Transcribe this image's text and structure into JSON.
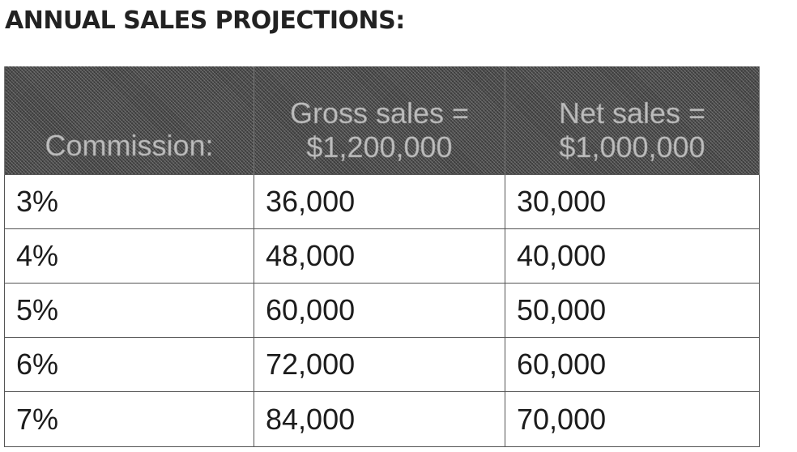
{
  "title": "ANNUAL SALES PROJECTIONS:",
  "table": {
    "headers": [
      {
        "lines": [
          "",
          "Commission:"
        ]
      },
      {
        "lines": [
          "Gross sales =",
          "$1,200,000"
        ]
      },
      {
        "lines": [
          "Net sales =",
          "$1,000,000"
        ]
      }
    ],
    "rows": [
      [
        "3%",
        "36,000",
        "30,000"
      ],
      [
        "4%",
        "48,000",
        "40,000"
      ],
      [
        "5%",
        "60,000",
        "50,000"
      ],
      [
        "6%",
        "72,000",
        "60,000"
      ],
      [
        "7%",
        "84,000",
        "70,000"
      ]
    ]
  }
}
